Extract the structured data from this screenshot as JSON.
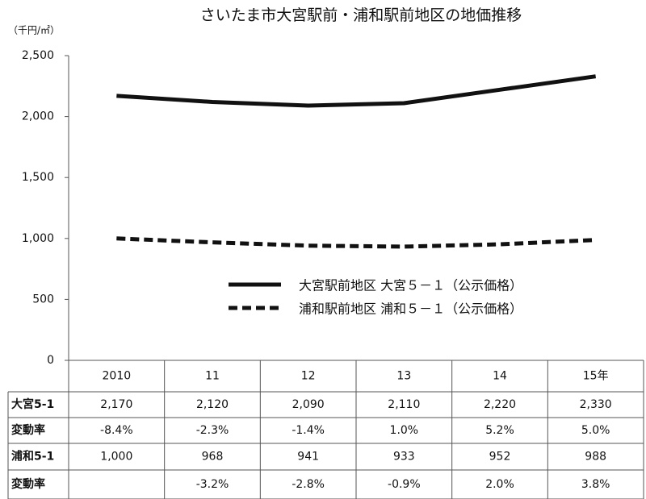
{
  "chart_data": {
    "type": "line",
    "title": "さいたま市大宮駅前・浦和駅前地区の地価推移",
    "y_unit": "（千円/㎡）",
    "categories": [
      "2010",
      "11",
      "12",
      "13",
      "14",
      "15年"
    ],
    "ylim": [
      0,
      2500
    ],
    "yticks": [
      0,
      {
        "value": 500,
        "label": "500"
      },
      {
        "value": 1000,
        "label": "1,000"
      },
      {
        "value": 1500,
        "label": "1,500"
      },
      {
        "value": 2000,
        "label": "2,000"
      },
      {
        "value": 2500,
        "label": "2,500"
      }
    ],
    "grid": false,
    "change_label": "変動率",
    "series": [
      {
        "name": "大宮駅前地区 大宮５－１（公示価格）",
        "row_label": "大宮5-1",
        "color": "#111111",
        "dash": false,
        "values": [
          2170,
          2120,
          2090,
          2110,
          2220,
          2330
        ],
        "value_labels": [
          "2,170",
          "2,120",
          "2,090",
          "2,110",
          "2,220",
          "2,330"
        ],
        "change_rates": [
          "-8.4%",
          "-2.3%",
          "-1.4%",
          "1.0%",
          "5.2%",
          "5.0%"
        ]
      },
      {
        "name": "浦和駅前地区 浦和５－１（公示価格）",
        "row_label": "浦和5-1",
        "color": "#111111",
        "dash": true,
        "values": [
          1000,
          968,
          941,
          933,
          952,
          988
        ],
        "value_labels": [
          "1,000",
          "968",
          "941",
          "933",
          "952",
          "988"
        ],
        "change_rates": [
          null,
          "-3.2%",
          "-2.8%",
          "-0.9%",
          "2.0%",
          "3.8%"
        ]
      }
    ]
  }
}
